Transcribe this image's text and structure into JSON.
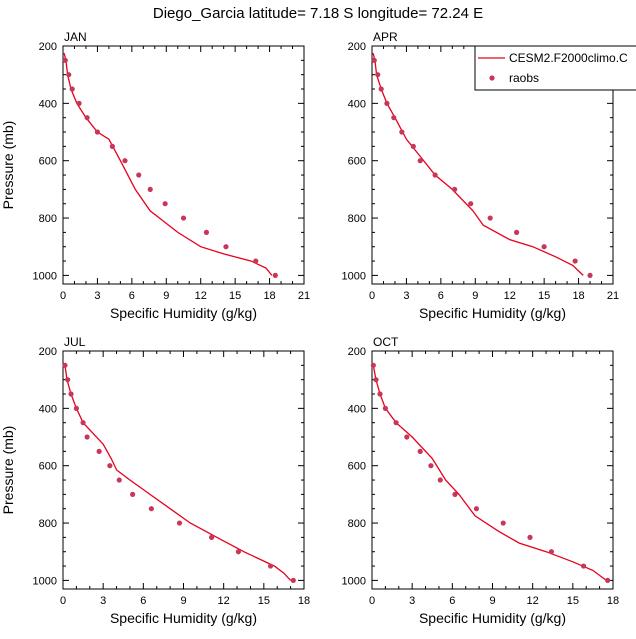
{
  "title": "Diego_Garcia  latitude= 7.18 S longitude= 72.24 E",
  "colors": {
    "model": "#e8001c",
    "obs": "#c8375a",
    "axis": "#000000"
  },
  "legend": {
    "entries": [
      "CESM2.F2000climo.C",
      "raobs"
    ],
    "placement": "top-right of APR panel"
  },
  "chart_data": [
    {
      "type": "line",
      "panel": "JAN",
      "xlabel": "Specific Humidity (g/kg)",
      "ylabel": "Pressure (mb)",
      "xlim": [
        0,
        21
      ],
      "ylim": [
        1030,
        200
      ],
      "y_reversed": true,
      "xticks": [
        0,
        3,
        6,
        9,
        12,
        15,
        18,
        21
      ],
      "yticks": [
        200,
        400,
        600,
        800,
        1000
      ],
      "series": [
        {
          "name": "CESM2.F2000climo.C",
          "style": "line",
          "x": [
            18.2,
            17.7,
            16.4,
            14.0,
            12.0,
            10.0,
            8.4,
            7.6,
            6.3,
            5.0,
            4.0,
            3.0,
            2.0,
            1.2,
            0.7,
            0.4,
            0.25,
            0.1
          ],
          "y": [
            1000,
            975,
            950,
            925,
            900,
            850,
            800,
            775,
            700,
            600,
            525,
            500,
            450,
            400,
            350,
            300,
            250,
            225
          ]
        },
        {
          "name": "raobs",
          "style": "marker",
          "x": [
            18.5,
            16.8,
            14.2,
            12.5,
            10.5,
            8.9,
            7.6,
            6.6,
            5.4,
            4.3,
            3.0,
            2.1,
            1.4,
            0.8,
            0.5,
            0.2
          ],
          "y": [
            1000,
            950,
            900,
            850,
            800,
            750,
            700,
            650,
            600,
            550,
            500,
            450,
            400,
            350,
            300,
            250
          ]
        }
      ]
    },
    {
      "type": "line",
      "panel": "APR",
      "xlabel": "Specific Humidity (g/kg)",
      "ylabel": "",
      "xlim": [
        0,
        21
      ],
      "ylim": [
        1030,
        200
      ],
      "y_reversed": true,
      "xticks": [
        0,
        3,
        6,
        9,
        12,
        15,
        18,
        21
      ],
      "yticks": [
        200,
        400,
        600,
        800,
        1000
      ],
      "series": [
        {
          "name": "CESM2.F2000climo.C",
          "style": "line",
          "x": [
            18.4,
            17.5,
            16.0,
            14.0,
            12.0,
            9.7,
            8.8,
            7.0,
            5.5,
            4.0,
            3.0,
            2.0,
            1.3,
            0.8,
            0.4,
            0.25,
            0.1
          ],
          "y": [
            1000,
            965,
            935,
            900,
            875,
            825,
            775,
            700,
            650,
            575,
            525,
            450,
            400,
            350,
            300,
            250,
            225
          ]
        },
        {
          "name": "raobs",
          "style": "marker",
          "x": [
            19.0,
            17.7,
            15.0,
            12.6,
            10.3,
            8.6,
            7.2,
            5.5,
            4.2,
            3.6,
            2.6,
            1.9,
            1.3,
            0.8,
            0.5,
            0.2
          ],
          "y": [
            1000,
            950,
            900,
            850,
            800,
            750,
            700,
            650,
            600,
            550,
            500,
            450,
            400,
            350,
            300,
            250
          ]
        }
      ]
    },
    {
      "type": "line",
      "panel": "JUL",
      "xlabel": "Specific Humidity (g/kg)",
      "ylabel": "Pressure (mb)",
      "xlim": [
        0,
        18
      ],
      "ylim": [
        1030,
        200
      ],
      "y_reversed": true,
      "xticks": [
        0,
        3,
        6,
        9,
        12,
        15,
        18
      ],
      "yticks": [
        200,
        400,
        600,
        800,
        1000
      ],
      "series": [
        {
          "name": "CESM2.F2000climo.C",
          "style": "line",
          "x": [
            17.0,
            16.5,
            15.8,
            13.5,
            11.5,
            9.5,
            8.0,
            6.5,
            5.0,
            4.0,
            3.6,
            3.0,
            1.5,
            1.0,
            0.6,
            0.3,
            0.15
          ],
          "y": [
            1000,
            975,
            950,
            900,
            850,
            800,
            750,
            700,
            650,
            615,
            575,
            525,
            450,
            400,
            350,
            300,
            250
          ]
        },
        {
          "name": "raobs",
          "style": "marker",
          "x": [
            17.2,
            15.5,
            13.1,
            11.1,
            8.7,
            6.6,
            5.2,
            4.2,
            3.5,
            2.7,
            1.8,
            1.5,
            1.0,
            0.6,
            0.35,
            0.15
          ],
          "y": [
            1000,
            950,
            900,
            850,
            800,
            750,
            700,
            650,
            600,
            550,
            500,
            450,
            400,
            350,
            300,
            250
          ]
        }
      ]
    },
    {
      "type": "line",
      "panel": "OCT",
      "xlabel": "Specific Humidity (g/kg)",
      "ylabel": "",
      "xlim": [
        0,
        18
      ],
      "ylim": [
        1030,
        200
      ],
      "y_reversed": true,
      "xticks": [
        0,
        3,
        6,
        9,
        12,
        15,
        18
      ],
      "yticks": [
        200,
        400,
        600,
        800,
        1000
      ],
      "series": [
        {
          "name": "CESM2.F2000climo.C",
          "style": "line",
          "x": [
            17.5,
            16.5,
            15.0,
            13.0,
            11.0,
            9.5,
            7.7,
            6.5,
            5.5,
            4.5,
            3.0,
            1.8,
            1.0,
            0.6,
            0.3,
            0.1
          ],
          "y": [
            1000,
            965,
            935,
            900,
            870,
            830,
            775,
            700,
            650,
            575,
            500,
            450,
            400,
            350,
            300,
            250
          ]
        },
        {
          "name": "raobs",
          "style": "marker",
          "x": [
            17.6,
            15.8,
            13.4,
            11.8,
            9.8,
            7.8,
            6.2,
            5.1,
            4.4,
            3.6,
            2.6,
            1.8,
            1.0,
            0.6,
            0.3,
            0.1
          ],
          "y": [
            1000,
            950,
            900,
            850,
            800,
            750,
            700,
            650,
            600,
            550,
            500,
            450,
            400,
            350,
            300,
            250
          ]
        }
      ]
    }
  ]
}
